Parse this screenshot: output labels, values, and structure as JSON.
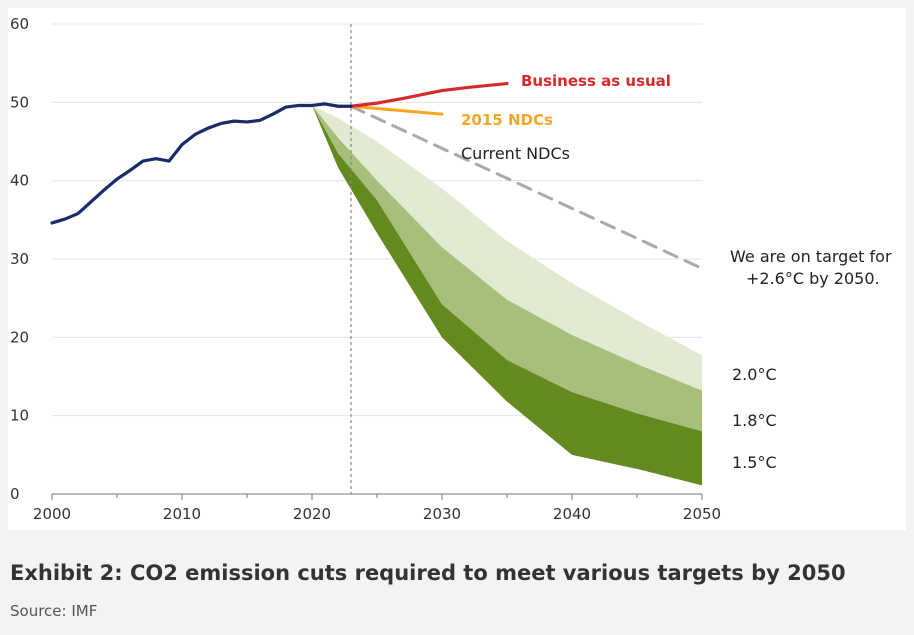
{
  "caption": "Exhibit 2: CO2 emission cuts required to meet various targets by 2050",
  "source": "Source: IMF",
  "colors": {
    "historical": "#1b2a6b",
    "business_as_usual": "#d62b2b",
    "ndc_2015": "#f5a623",
    "current_ndc": "#a9a9a9",
    "band_2_0": "#e2ead3",
    "band_1_8": "#a6bf7a",
    "band_1_5": "#64891f",
    "grid": "#e3e3e3",
    "now_marker": "#888888"
  },
  "chart_data": {
    "type": "area",
    "title": "",
    "xlabel": "",
    "ylabel": "",
    "xlim": [
      2000,
      2050
    ],
    "ylim": [
      0,
      60
    ],
    "x_ticks": [
      2000,
      2010,
      2020,
      2030,
      2040,
      2050
    ],
    "y_ticks": [
      0,
      10,
      20,
      30,
      40,
      50,
      60
    ],
    "grid": "horizontal",
    "now_marker_x": 2023,
    "series": [
      {
        "name": "",
        "key": "historical",
        "style": "line",
        "x": [
          2000,
          2001,
          2002,
          2003,
          2004,
          2005,
          2006,
          2007,
          2008,
          2009,
          2010,
          2011,
          2012,
          2013,
          2014,
          2015,
          2016,
          2017,
          2018,
          2019,
          2020,
          2021,
          2022,
          2023
        ],
        "y": [
          34.6,
          35.1,
          35.8,
          37.3,
          38.8,
          40.2,
          41.3,
          42.5,
          42.8,
          42.5,
          44.6,
          45.9,
          46.7,
          47.3,
          47.6,
          47.5,
          47.7,
          48.5,
          49.4,
          49.6,
          49.6,
          49.8,
          49.5,
          49.5
        ]
      },
      {
        "name": "Business as usual",
        "key": "business_as_usual",
        "style": "line",
        "x": [
          2023,
          2025,
          2027,
          2030,
          2032,
          2035
        ],
        "y": [
          49.5,
          49.9,
          50.5,
          51.5,
          51.9,
          52.4
        ]
      },
      {
        "name": "2015 NDCs",
        "key": "ndc_2015",
        "style": "line",
        "x": [
          2023,
          2030
        ],
        "y": [
          49.5,
          48.5
        ]
      },
      {
        "name": "Current NDCs",
        "key": "current_ndc",
        "style": "dashed-line",
        "x": [
          2023,
          2050
        ],
        "y": [
          49.5,
          28.8
        ]
      },
      {
        "name": "2.0°C",
        "key": "band_2_0",
        "style": "area",
        "x": [
          2020,
          2022,
          2025,
          2030,
          2035,
          2040,
          2045,
          2050
        ],
        "y": [
          49.6,
          48.0,
          45.0,
          39.0,
          32.3,
          26.9,
          22.2,
          17.7
        ]
      },
      {
        "name": "1.8°C",
        "key": "band_1_8",
        "style": "area",
        "x": [
          2020,
          2022,
          2025,
          2030,
          2035,
          2040,
          2045,
          2050
        ],
        "y": [
          49.6,
          45.5,
          40.0,
          31.5,
          24.8,
          20.3,
          16.6,
          13.2
        ]
      },
      {
        "name": "1.5°C",
        "key": "band_1_5",
        "style": "area",
        "x": [
          2020,
          2022,
          2025,
          2030,
          2035,
          2040,
          2045,
          2050
        ],
        "y": [
          49.6,
          43.5,
          37.5,
          24.2,
          17.1,
          13.0,
          10.3,
          8.0
        ]
      },
      {
        "name": "",
        "key": "band_floor",
        "style": "floor",
        "x": [
          2020,
          2022,
          2025,
          2030,
          2035,
          2040,
          2045,
          2050
        ],
        "y": [
          49.6,
          41.7,
          33.3,
          20.0,
          11.8,
          5.0,
          3.2,
          1.1
        ]
      }
    ],
    "annotations": {
      "business_as_usual": "Business as usual",
      "ndc_2015": "2015 NDCs",
      "current_ndc": "Current NDCs",
      "target_line1": "We are on target for",
      "target_line2": "+2.6°C by 2050.",
      "band_2_0": "2.0°C",
      "band_1_8": "1.8°C",
      "band_1_5": "1.5°C"
    }
  }
}
